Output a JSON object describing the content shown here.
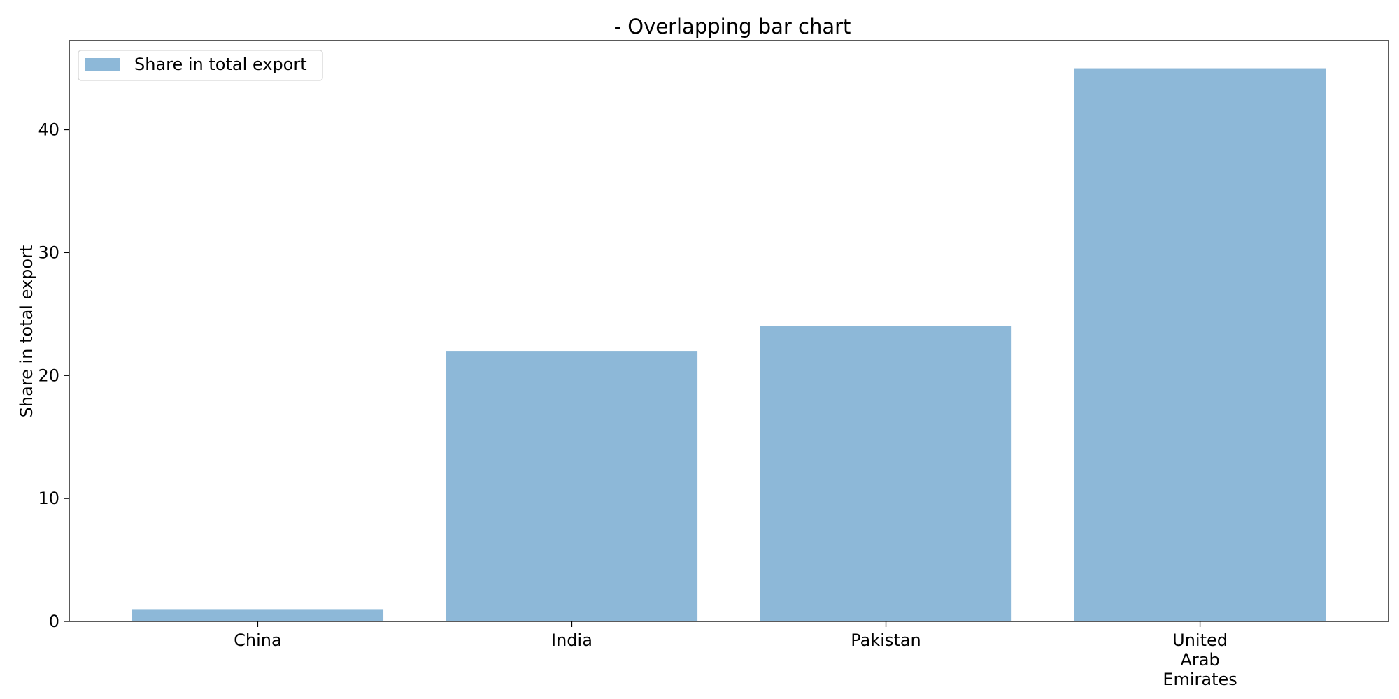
{
  "chart_data": {
    "type": "bar",
    "title": "- Overlapping bar chart",
    "xlabel": "",
    "ylabel": "Share in total export",
    "categories": [
      "China",
      "India",
      "Pakistan",
      "United\nArab\nEmirates"
    ],
    "series": [
      {
        "name": "Share in total export",
        "values": [
          1,
          22,
          24,
          45
        ],
        "color": "#8db8d8"
      }
    ],
    "ylim": [
      0,
      47.25
    ],
    "yticks": [
      0,
      10,
      20,
      30,
      40
    ],
    "grid": false,
    "legend": {
      "placement": "top-left",
      "entries": [
        "Share in total export"
      ]
    }
  }
}
